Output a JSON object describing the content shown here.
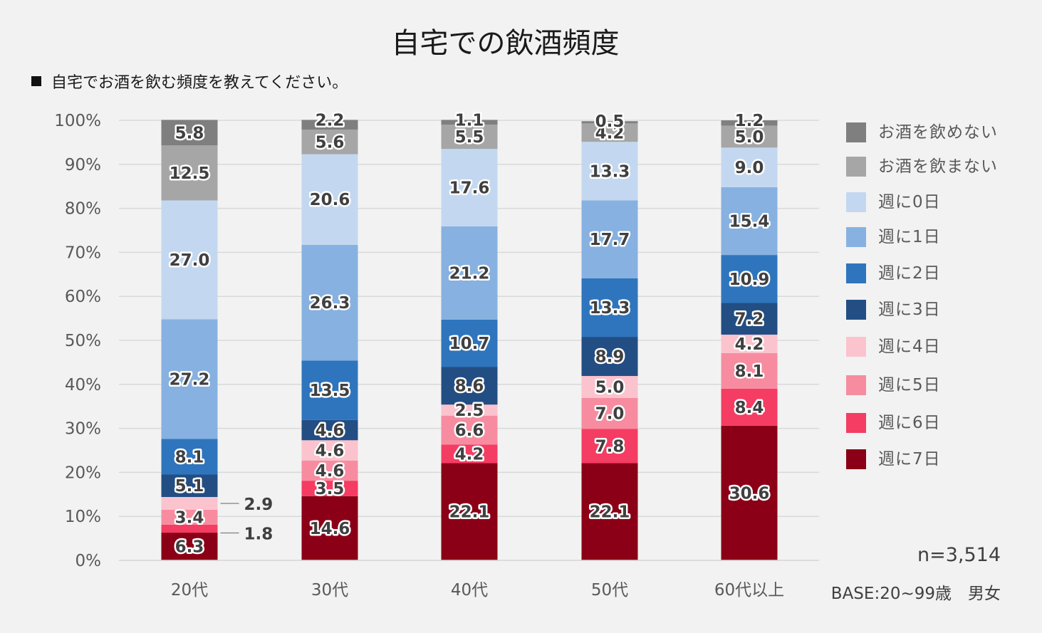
{
  "chart_data": {
    "type": "bar",
    "stacked": true,
    "title": "自宅での飲酒頻度",
    "subtitle": "自宅でお酒を飲む頻度を教えてください。",
    "categories": [
      "20代",
      "30代",
      "40代",
      "50代",
      "60代以上"
    ],
    "ylim": [
      0,
      100
    ],
    "yticks": [
      "0%",
      "10%",
      "20%",
      "30%",
      "40%",
      "50%",
      "60%",
      "70%",
      "80%",
      "90%",
      "100%"
    ],
    "grid": true,
    "legend_position": "right",
    "series": [
      {
        "name": "週に7日",
        "color": "#8b0016",
        "values": [
          6.3,
          14.6,
          22.1,
          22.1,
          30.6
        ]
      },
      {
        "name": "週に6日",
        "color": "#f53c62",
        "values": [
          1.8,
          3.5,
          4.2,
          7.8,
          8.4
        ]
      },
      {
        "name": "週に5日",
        "color": "#f78ca0",
        "values": [
          3.4,
          4.6,
          6.6,
          7.0,
          8.1
        ]
      },
      {
        "name": "週に4日",
        "color": "#fbc3cd",
        "values": [
          2.9,
          4.6,
          2.5,
          5.0,
          4.2
        ]
      },
      {
        "name": "週に3日",
        "color": "#224e84",
        "values": [
          5.1,
          4.6,
          8.6,
          8.9,
          7.2
        ]
      },
      {
        "name": "週に2日",
        "color": "#2e75bd",
        "values": [
          8.1,
          13.5,
          10.7,
          13.3,
          10.9
        ]
      },
      {
        "name": "週に1日",
        "color": "#87b1e0",
        "values": [
          27.2,
          26.3,
          21.2,
          17.7,
          15.4
        ]
      },
      {
        "name": "週に0日",
        "color": "#c3d8f0",
        "values": [
          27.0,
          20.6,
          17.6,
          13.3,
          9.0
        ]
      },
      {
        "name": "お酒を飲まない",
        "color": "#a6a6a6",
        "values": [
          12.5,
          5.6,
          5.5,
          4.2,
          5.0
        ]
      },
      {
        "name": "お酒を飲めない",
        "color": "#7f7f7f",
        "values": [
          5.8,
          2.2,
          1.1,
          0.5,
          1.2
        ]
      }
    ],
    "labels": [
      [
        "6.3",
        "14.6",
        "22.1",
        "22.1",
        "30.6"
      ],
      [
        "1.8",
        "3.5",
        "4.2",
        "7.8",
        "8.4"
      ],
      [
        "3.4",
        "4.6",
        "6.6",
        "7.0",
        "8.1"
      ],
      [
        "2.9",
        "4.6",
        "2.5",
        "5.0",
        "4.2"
      ],
      [
        "5.1",
        "4.6",
        "8.6",
        "8.9",
        "7.2"
      ],
      [
        "8.1",
        "13.5",
        "10.7",
        "13.3",
        "10.9"
      ],
      [
        "27.2",
        "26.3",
        "21.2",
        "17.7",
        "15.4"
      ],
      [
        "27.0",
        "20.6",
        "17.6",
        "13.3",
        "9.0"
      ],
      [
        "12.5",
        "5.6",
        "5.5",
        "4.2",
        "5.0"
      ],
      [
        "5.8",
        "2.2",
        "1.1",
        "0.5",
        "1.2"
      ]
    ],
    "legend_order": [
      "お酒を飲めない",
      "お酒を飲まない",
      "週に0日",
      "週に1日",
      "週に2日",
      "週に3日",
      "週に4日",
      "週に5日",
      "週に6日",
      "週に7日"
    ],
    "annotations": {
      "n": "n=3,514",
      "base": "BASE:20~99歳　男女"
    }
  }
}
